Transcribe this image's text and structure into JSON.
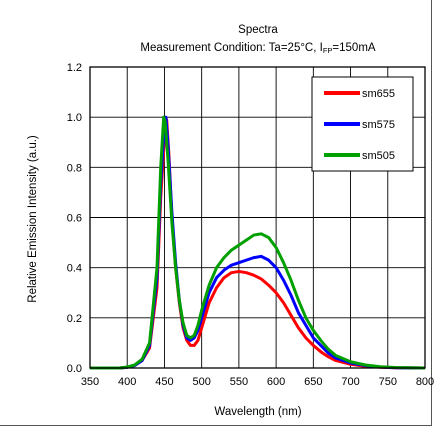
{
  "chart_data": {
    "type": "line",
    "title": "Spectra",
    "subtitle": {
      "prefix": "Measurement Condition: Ta=25°C, I",
      "sub": "FP",
      "suffix": "=150mA"
    },
    "xlabel": "Wavelength (nm)",
    "ylabel": "Relative Emission Intensity (a.u.)",
    "xlim": [
      350,
      800
    ],
    "ylim": [
      0,
      1.2
    ],
    "xticks": [
      350,
      400,
      450,
      500,
      550,
      600,
      650,
      700,
      750,
      800
    ],
    "yticks": [
      "0.0",
      "0.2",
      "0.4",
      "0.6",
      "0.8",
      "1.0",
      "1.2"
    ],
    "grid": true,
    "legend_position": "top-right",
    "series": [
      {
        "name": "sm655",
        "color": "#ff0000",
        "points": [
          [
            350,
            0
          ],
          [
            390,
            0
          ],
          [
            400,
            0.003
          ],
          [
            410,
            0.01
          ],
          [
            420,
            0.03
          ],
          [
            430,
            0.08
          ],
          [
            440,
            0.32
          ],
          [
            445,
            0.68
          ],
          [
            450,
            0.92
          ],
          [
            453,
            0.99
          ],
          [
            456,
            0.85
          ],
          [
            460,
            0.6
          ],
          [
            465,
            0.4
          ],
          [
            470,
            0.26
          ],
          [
            475,
            0.16
          ],
          [
            480,
            0.11
          ],
          [
            485,
            0.09
          ],
          [
            490,
            0.09
          ],
          [
            495,
            0.11
          ],
          [
            500,
            0.16
          ],
          [
            510,
            0.26
          ],
          [
            520,
            0.32
          ],
          [
            530,
            0.36
          ],
          [
            540,
            0.38
          ],
          [
            550,
            0.385
          ],
          [
            560,
            0.38
          ],
          [
            570,
            0.37
          ],
          [
            580,
            0.355
          ],
          [
            590,
            0.33
          ],
          [
            600,
            0.3
          ],
          [
            610,
            0.26
          ],
          [
            620,
            0.21
          ],
          [
            630,
            0.16
          ],
          [
            640,
            0.12
          ],
          [
            650,
            0.09
          ],
          [
            660,
            0.065
          ],
          [
            670,
            0.045
          ],
          [
            680,
            0.03
          ],
          [
            700,
            0.015
          ],
          [
            720,
            0.007
          ],
          [
            740,
            0.003
          ],
          [
            760,
            0.001
          ],
          [
            800,
            0
          ]
        ]
      },
      {
        "name": "sm575",
        "color": "#0000ff",
        "points": [
          [
            350,
            0
          ],
          [
            390,
            0
          ],
          [
            400,
            0.003
          ],
          [
            410,
            0.01
          ],
          [
            420,
            0.03
          ],
          [
            430,
            0.09
          ],
          [
            440,
            0.36
          ],
          [
            445,
            0.74
          ],
          [
            450,
            0.97
          ],
          [
            452,
            1.0
          ],
          [
            455,
            0.88
          ],
          [
            460,
            0.62
          ],
          [
            465,
            0.42
          ],
          [
            470,
            0.27
          ],
          [
            475,
            0.17
          ],
          [
            480,
            0.12
          ],
          [
            485,
            0.11
          ],
          [
            490,
            0.12
          ],
          [
            495,
            0.15
          ],
          [
            500,
            0.2
          ],
          [
            510,
            0.3
          ],
          [
            520,
            0.36
          ],
          [
            530,
            0.39
          ],
          [
            540,
            0.41
          ],
          [
            550,
            0.42
          ],
          [
            560,
            0.43
          ],
          [
            570,
            0.44
          ],
          [
            580,
            0.445
          ],
          [
            590,
            0.43
          ],
          [
            600,
            0.4
          ],
          [
            610,
            0.35
          ],
          [
            620,
            0.29
          ],
          [
            630,
            0.22
          ],
          [
            640,
            0.17
          ],
          [
            650,
            0.12
          ],
          [
            660,
            0.09
          ],
          [
            670,
            0.06
          ],
          [
            680,
            0.04
          ],
          [
            700,
            0.02
          ],
          [
            720,
            0.01
          ],
          [
            740,
            0.004
          ],
          [
            760,
            0.001
          ],
          [
            800,
            0
          ]
        ]
      },
      {
        "name": "sm505",
        "color": "#00a000",
        "points": [
          [
            350,
            0
          ],
          [
            390,
            0
          ],
          [
            400,
            0.004
          ],
          [
            410,
            0.012
          ],
          [
            420,
            0.035
          ],
          [
            430,
            0.1
          ],
          [
            440,
            0.4
          ],
          [
            445,
            0.8
          ],
          [
            449,
            1.0
          ],
          [
            451,
            0.98
          ],
          [
            455,
            0.82
          ],
          [
            460,
            0.58
          ],
          [
            465,
            0.4
          ],
          [
            470,
            0.27
          ],
          [
            475,
            0.18
          ],
          [
            480,
            0.13
          ],
          [
            485,
            0.12
          ],
          [
            490,
            0.13
          ],
          [
            495,
            0.17
          ],
          [
            500,
            0.23
          ],
          [
            510,
            0.33
          ],
          [
            520,
            0.4
          ],
          [
            530,
            0.44
          ],
          [
            540,
            0.47
          ],
          [
            550,
            0.49
          ],
          [
            560,
            0.51
          ],
          [
            570,
            0.53
          ],
          [
            580,
            0.535
          ],
          [
            590,
            0.52
          ],
          [
            600,
            0.48
          ],
          [
            610,
            0.42
          ],
          [
            620,
            0.35
          ],
          [
            630,
            0.27
          ],
          [
            640,
            0.2
          ],
          [
            650,
            0.15
          ],
          [
            660,
            0.11
          ],
          [
            670,
            0.075
          ],
          [
            680,
            0.05
          ],
          [
            700,
            0.025
          ],
          [
            720,
            0.012
          ],
          [
            740,
            0.005
          ],
          [
            760,
            0.002
          ],
          [
            800,
            0
          ]
        ]
      }
    ]
  }
}
